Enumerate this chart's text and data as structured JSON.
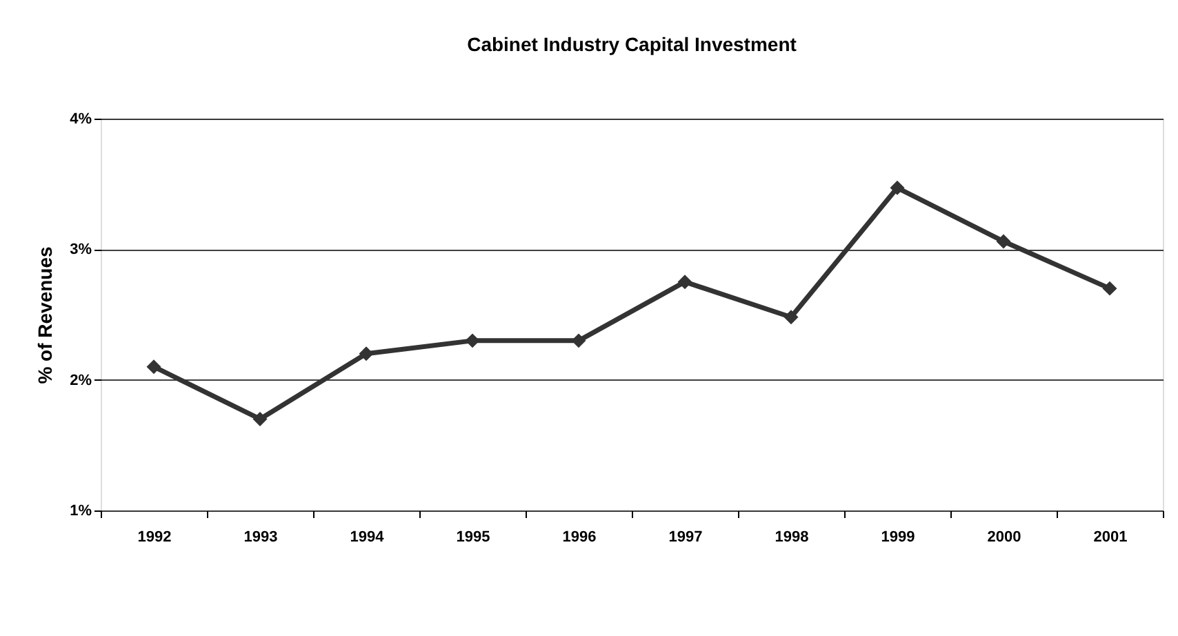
{
  "chart_data": {
    "type": "line",
    "title": "Cabinet Industry Capital Investment",
    "ylabel": "% of Revenues",
    "categories": [
      "1992",
      "1993",
      "1994",
      "1995",
      "1996",
      "1997",
      "1998",
      "1999",
      "2000",
      "2001"
    ],
    "series": [
      {
        "color": "#333333",
        "values": [
          2.1,
          1.7,
          2.2,
          2.3,
          2.3,
          2.75,
          2.48,
          3.47,
          3.06,
          2.7
        ]
      }
    ],
    "ylim": [
      1,
      4
    ],
    "yticks": [
      {
        "value": 1,
        "label": "1%"
      },
      {
        "value": 2,
        "label": "2%"
      },
      {
        "value": 3,
        "label": "3%"
      },
      {
        "value": 4,
        "label": "4%"
      }
    ],
    "grid": "y",
    "marker": "diamond",
    "line_style": "solid"
  }
}
